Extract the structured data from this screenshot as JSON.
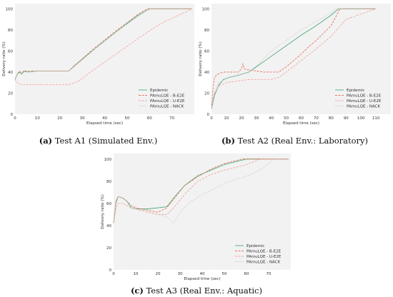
{
  "captions": [
    {
      "id": "a",
      "label": "(a)",
      "text": " Test A1 (Simulated Env.)"
    },
    {
      "id": "b",
      "label": "(b)",
      "text": " Test A2 (Real Env.: Laboratory)"
    },
    {
      "id": "c",
      "label": "(c)",
      "text": " Test A3 (Real Env.: Aquatic)"
    }
  ],
  "colors": {
    "background": "#f2f2f2",
    "Epidemic": "#4daa7a",
    "PAmuLQE - B-E2E": "#e8735b",
    "PAmuLQE - U-E2E": "#f2a7a0",
    "PAmuLQE - NACK": "#c8c8c8"
  },
  "chart_data": [
    {
      "type": "line",
      "xlabel": "Elapsed time (sec)",
      "ylabel": "Delivery ratio (%)",
      "xlim": [
        0,
        80
      ],
      "ylim": [
        0,
        105
      ],
      "xticks": [
        0,
        10,
        20,
        30,
        40,
        50,
        60,
        70
      ],
      "yticks": [
        0,
        20,
        40,
        60,
        80,
        100
      ],
      "legend": "bottom-right",
      "series": [
        {
          "name": "Epidemic",
          "style": "solid",
          "x": [
            0,
            1,
            2,
            3,
            4,
            6,
            10,
            15,
            20,
            24,
            27,
            35,
            45,
            55,
            60,
            79
          ],
          "y": [
            33,
            38,
            40,
            38,
            41,
            40,
            41,
            41,
            41,
            41,
            47,
            61,
            78,
            94,
            100,
            100
          ]
        },
        {
          "name": "PAmuLQE - B-E2E",
          "style": "dashed",
          "x": [
            0,
            1,
            2,
            3,
            4,
            6,
            10,
            15,
            20,
            24,
            27,
            35,
            45,
            55,
            59,
            79
          ],
          "y": [
            33,
            38,
            41,
            39,
            41,
            41,
            41,
            41,
            41,
            41,
            47,
            62,
            79,
            95,
            100,
            100
          ]
        },
        {
          "name": "PAmuLQE - U-E2E",
          "style": "dashed",
          "x": [
            0,
            1,
            3,
            6,
            10,
            15,
            20,
            24,
            28,
            35,
            45,
            55,
            65,
            79
          ],
          "y": [
            33,
            30,
            28,
            28,
            28,
            28,
            28,
            28,
            31,
            42,
            57,
            72,
            86,
            100
          ]
        },
        {
          "name": "PAmuLQE - NACK",
          "style": "dotted",
          "x": [
            0,
            1,
            3,
            6,
            10,
            15,
            20,
            24,
            27,
            35,
            45,
            55,
            60,
            79
          ],
          "y": [
            33,
            38,
            40,
            40,
            41,
            41,
            41,
            41,
            46,
            61,
            78,
            93,
            100,
            100
          ]
        }
      ]
    },
    {
      "type": "line",
      "xlabel": "Elapsed time (sec)",
      "ylabel": "Delivery ratio (%)",
      "xlim": [
        0,
        120
      ],
      "ylim": [
        0,
        105
      ],
      "xticks": [
        0,
        10,
        20,
        30,
        40,
        50,
        60,
        70,
        80,
        90,
        100,
        110
      ],
      "yticks": [
        0,
        20,
        40,
        60,
        80,
        100
      ],
      "legend": "bottom-right",
      "series": [
        {
          "name": "Epidemic",
          "style": "solid",
          "x": [
            0,
            2,
            5,
            8,
            12,
            18,
            25,
            30,
            35,
            40,
            50,
            60,
            70,
            80,
            85,
            110
          ],
          "y": [
            5,
            18,
            28,
            33,
            35,
            37,
            40,
            45,
            50,
            55,
            65,
            75,
            84,
            94,
            100,
            100
          ]
        },
        {
          "name": "PAmuLQE - B-E2E",
          "style": "dashed",
          "x": [
            0,
            1,
            2,
            4,
            8,
            12,
            18,
            20,
            21,
            22,
            25,
            30,
            35,
            40,
            45,
            50,
            55,
            60,
            65,
            70,
            75,
            80,
            86,
            110
          ],
          "y": [
            8,
            25,
            35,
            38,
            40,
            40,
            40,
            43,
            48,
            43,
            42,
            41,
            40,
            40,
            40,
            45,
            51,
            57,
            64,
            70,
            77,
            84,
            100,
            100
          ]
        },
        {
          "name": "PAmuLQE - U-E2E",
          "style": "dashed",
          "x": [
            0,
            2,
            5,
            10,
            15,
            20,
            25,
            30,
            35,
            40,
            45,
            50,
            60,
            70,
            80,
            90,
            110
          ],
          "y": [
            10,
            20,
            27,
            30,
            31,
            32,
            33,
            33,
            33,
            33,
            35,
            40,
            51,
            62,
            74,
            90,
            100
          ]
        },
        {
          "name": "PAmuLQE - NACK",
          "style": "dotted",
          "x": [
            0,
            2,
            5,
            10,
            15,
            20,
            25,
            30,
            35,
            40,
            50,
            60,
            70,
            80,
            83,
            110
          ],
          "y": [
            5,
            22,
            30,
            34,
            36,
            38,
            40,
            46,
            53,
            60,
            70,
            80,
            88,
            96,
            100,
            100
          ]
        }
      ]
    },
    {
      "type": "line",
      "xlabel": "Elapsed time (sec)",
      "ylabel": "Delivery ratio (%)",
      "xlim": [
        0,
        80
      ],
      "ylim": [
        0,
        105
      ],
      "xticks": [
        0,
        10,
        20,
        30,
        40,
        50,
        60,
        70
      ],
      "yticks": [
        0,
        20,
        40,
        60,
        80,
        100
      ],
      "legend": "bottom-right",
      "series": [
        {
          "name": "Epidemic",
          "style": "solid",
          "x": [
            0,
            1,
            2,
            4,
            6,
            8,
            10,
            15,
            20,
            24,
            28,
            32,
            38,
            44,
            50,
            56,
            60,
            79
          ],
          "y": [
            42,
            60,
            66,
            65,
            62,
            56,
            55,
            55,
            56,
            57,
            67,
            76,
            85,
            90,
            95,
            98,
            100,
            100
          ]
        },
        {
          "name": "PAmuLQE - B-E2E",
          "style": "dashed",
          "x": [
            0,
            1,
            2,
            4,
            6,
            8,
            10,
            15,
            20,
            24,
            28,
            32,
            38,
            44,
            50,
            56,
            58,
            79
          ],
          "y": [
            42,
            62,
            66,
            65,
            62,
            58,
            56,
            54,
            52,
            56,
            66,
            76,
            84,
            91,
            96,
            99,
            100,
            100
          ]
        },
        {
          "name": "PAmuLQE - U-E2E",
          "style": "dashed",
          "x": [
            0,
            1,
            2,
            4,
            6,
            8,
            10,
            15,
            20,
            24,
            28,
            32,
            38,
            44,
            50,
            56,
            60,
            64,
            66,
            79
          ],
          "y": [
            42,
            55,
            60,
            60,
            58,
            56,
            55,
            52,
            50,
            50,
            58,
            68,
            80,
            86,
            90,
            93,
            95,
            98,
            100,
            100
          ]
        },
        {
          "name": "PAmuLQE - NACK",
          "style": "dotted",
          "x": [
            0,
            1,
            2,
            4,
            6,
            8,
            10,
            15,
            20,
            24,
            27,
            30,
            34,
            38,
            44,
            50,
            56,
            62,
            66,
            70,
            72,
            79
          ],
          "y": [
            42,
            62,
            66,
            65,
            62,
            58,
            55,
            53,
            50,
            48,
            42,
            52,
            60,
            66,
            72,
            78,
            82,
            86,
            90,
            96,
            100,
            100
          ]
        }
      ]
    }
  ]
}
